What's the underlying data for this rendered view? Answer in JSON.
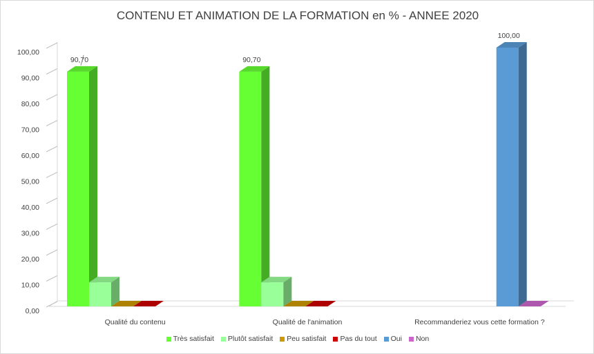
{
  "chart_data": {
    "type": "bar",
    "title": "CONTENU ET ANIMATION DE LA FORMATION en % -  ANNEE 2020",
    "categories": [
      "Qualité du contenu",
      "Qualité de l'animation",
      "Recommanderiez vous cette formation ?"
    ],
    "ylim": [
      0,
      100
    ],
    "yticks": [
      "0,00",
      "10,00",
      "20,00",
      "30,00",
      "40,00",
      "50,00",
      "60,00",
      "70,00",
      "80,00",
      "90,00",
      "100,00"
    ],
    "grid": false,
    "legend_position": "bottom",
    "series": [
      {
        "name": "Très satisfait",
        "color": "#66ff33",
        "values": [
          90.7,
          90.7,
          null
        ],
        "labels": [
          "90,70",
          "90,70",
          null
        ]
      },
      {
        "name": "Plutôt satisfait",
        "color": "#99ff99",
        "values": [
          9.3,
          9.3,
          null
        ],
        "labels": [
          null,
          null,
          null
        ]
      },
      {
        "name": "Peu satisfait",
        "color": "#cc9900",
        "values": [
          0,
          0,
          null
        ],
        "labels": [
          null,
          null,
          null
        ]
      },
      {
        "name": "Pas du tout",
        "color": "#cc0000",
        "values": [
          0,
          0,
          null
        ],
        "labels": [
          null,
          null,
          null
        ]
      },
      {
        "name": "Oui",
        "color": "#5b9bd5",
        "values": [
          null,
          null,
          100
        ],
        "labels": [
          null,
          null,
          "100,00"
        ]
      },
      {
        "name": "Non",
        "color": "#cc66cc",
        "values": [
          null,
          null,
          0
        ],
        "labels": [
          null,
          null,
          null
        ]
      }
    ]
  }
}
